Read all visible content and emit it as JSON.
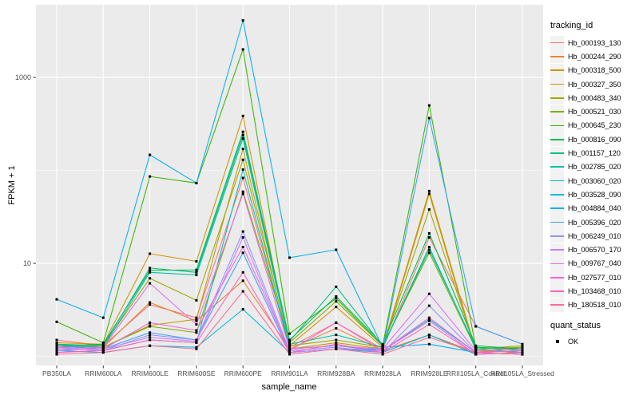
{
  "figure": {
    "background": "#FFFFFF",
    "panel_background": "#EBEBEB",
    "grid_color": "#FFFFFF",
    "tick_text_color": "#4D4D4D",
    "axis_title_color": "#000000",
    "point_color": "#000000",
    "legend_key_background": "#F2F2F2"
  },
  "chart_data": {
    "type": "line",
    "xlabel": "sample_name",
    "ylabel": "FPKM + 1",
    "y_scale": "log10",
    "grid": true,
    "legend_position": "right",
    "y_ticks": [
      {
        "label": "10",
        "value": 10
      },
      {
        "label": "1000",
        "value": 1000
      }
    ],
    "y_minor_values": [
      1,
      100
    ],
    "categories": [
      "PB350LA",
      "RRIM600LA",
      "RRIM600LE",
      "RRIM600SE",
      "RRIM600PE",
      "RRIM901LA",
      "RRIM928BA",
      "RRIM928LA",
      "RRIM928LE",
      "RRII105LA_Control",
      "RRII105LA_Stressed"
    ],
    "series": [
      {
        "name": "Hb_000193_130",
        "color": "#F8766D",
        "values": [
          1.5,
          1.3,
          3.6,
          2.6,
          83,
          1.25,
          2.3,
          1.2,
          19,
          2.1,
          1.35
        ]
      },
      {
        "name": "Hb_000244_290",
        "color": "#EA8331",
        "values": [
          1.35,
          1.25,
          3.8,
          2.4,
          6.5,
          1.2,
          2.0,
          1.15,
          1.7,
          1.1,
          1.15
        ]
      },
      {
        "name": "Hb_000318_500",
        "color": "#D89000",
        "values": [
          1.4,
          1.35,
          12.7,
          10.5,
          385,
          1.3,
          3.4,
          1.25,
          60,
          1.15,
          1.1
        ]
      },
      {
        "name": "Hb_000327_350",
        "color": "#C09B00",
        "values": [
          1.3,
          1.25,
          2.15,
          2.5,
          170,
          1.2,
          1.4,
          1.2,
          56,
          1.1,
          1.25
        ]
      },
      {
        "name": "Hb_000483_340",
        "color": "#A3A500",
        "values": [
          1.25,
          1.3,
          6.9,
          4.0,
          130,
          1.3,
          1.5,
          1.25,
          38,
          1.2,
          1.3
        ]
      },
      {
        "name": "Hb_000521_030",
        "color": "#7CAE00",
        "values": [
          1.2,
          1.25,
          2.1,
          1.8,
          59,
          1.4,
          3.9,
          1.3,
          13,
          1.2,
          1.25
        ]
      },
      {
        "name": "Hb_000645_230",
        "color": "#39B600",
        "values": [
          2.35,
          1.4,
          86,
          73,
          2000,
          1.75,
          4.2,
          1.3,
          500,
          1.25,
          1.2
        ]
      },
      {
        "name": "Hb_000816_090",
        "color": "#00BB4E",
        "values": [
          1.3,
          1.35,
          8.4,
          8.5,
          260,
          1.5,
          4.4,
          1.35,
          21,
          1.3,
          1.2
        ]
      },
      {
        "name": "Hb_001157_120",
        "color": "#00BF7D",
        "values": [
          1.35,
          1.3,
          8.9,
          8.0,
          240,
          1.45,
          5.6,
          1.3,
          14,
          1.25,
          1.15
        ]
      },
      {
        "name": "Hb_002785_020",
        "color": "#00C1A3",
        "values": [
          1.3,
          1.25,
          8.0,
          7.5,
          220,
          1.35,
          1.7,
          1.25,
          15,
          1.2,
          1.1
        ]
      },
      {
        "name": "Hb_003060_020",
        "color": "#00BFC4",
        "values": [
          1.2,
          1.15,
          1.5,
          1.4,
          102,
          1.2,
          1.3,
          1.15,
          2.5,
          1.1,
          1.05
        ]
      },
      {
        "name": "Hb_003528_090",
        "color": "#00BAE0",
        "values": [
          1.15,
          1.1,
          1.3,
          1.25,
          3.2,
          1.1,
          1.2,
          1.1,
          1.7,
          1.05,
          1.1
        ]
      },
      {
        "name": "Hb_004884_040",
        "color": "#00B0F6",
        "values": [
          4.1,
          2.6,
          147,
          73,
          4100,
          11.5,
          14,
          1.25,
          1.35,
          1.1,
          1.05
        ]
      },
      {
        "name": "Hb_005396_020",
        "color": "#35A2FF",
        "values": [
          1.3,
          1.2,
          1.8,
          1.5,
          13,
          1.1,
          1.2,
          1.2,
          365,
          2.1,
          1.35
        ]
      },
      {
        "name": "Hb_006249_010",
        "color": "#9590FF",
        "values": [
          1.2,
          1.15,
          1.7,
          1.5,
          22,
          1.15,
          1.25,
          1.1,
          3.5,
          1.1,
          1.05
        ]
      },
      {
        "name": "Hb_006570_170",
        "color": "#C77CFF",
        "values": [
          1.15,
          1.2,
          1.6,
          1.45,
          19,
          1.1,
          1.2,
          1.15,
          2.4,
          1.05,
          1.1
        ]
      },
      {
        "name": "Hb_009767_040",
        "color": "#E76BF3",
        "values": [
          1.2,
          1.25,
          6.1,
          2.2,
          56,
          1.2,
          1.3,
          1.2,
          4.7,
          1.15,
          1.2
        ]
      },
      {
        "name": "Hb_027577_010",
        "color": "#FA62DB",
        "values": [
          1.25,
          1.2,
          2.3,
          1.9,
          15,
          1.15,
          2.3,
          1.15,
          2.6,
          1.1,
          1.15
        ]
      },
      {
        "name": "Hb_103468_010",
        "color": "#FF62BC",
        "values": [
          1.1,
          1.15,
          1.5,
          1.4,
          8.0,
          1.1,
          1.35,
          1.1,
          2.2,
          1.05,
          1.1
        ]
      },
      {
        "name": "Hb_180518_010",
        "color": "#FF6A98",
        "values": [
          1.05,
          1.1,
          1.3,
          1.2,
          5.0,
          1.05,
          1.2,
          1.05,
          1.6,
          1.1,
          1.05
        ]
      }
    ],
    "legend": {
      "color_title": "tracking_id",
      "shape_title": "quant_status",
      "shape_entries": [
        {
          "label": "OK",
          "shape": "square",
          "color": "#000000"
        }
      ]
    }
  }
}
